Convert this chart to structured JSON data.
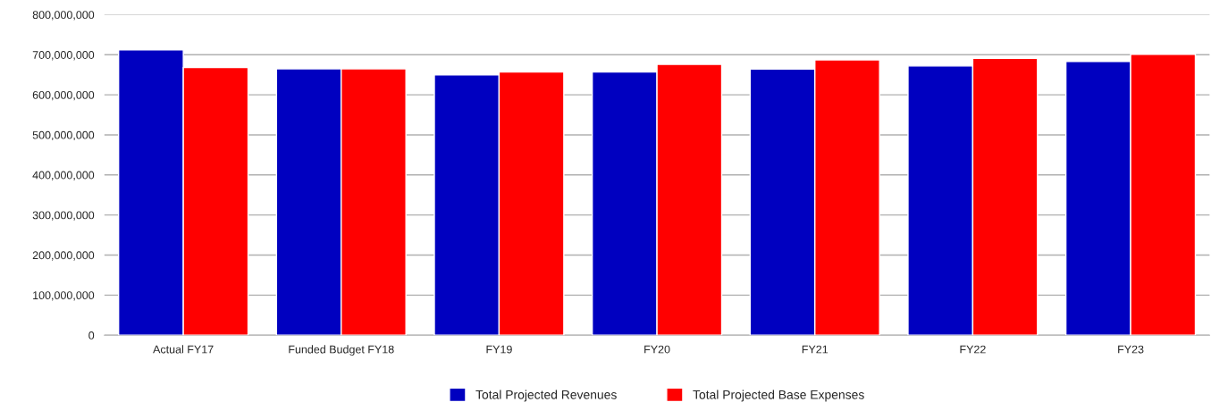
{
  "chart_data": {
    "type": "bar",
    "categories": [
      "Actual FY17",
      "Funded Budget FY18",
      "FY19",
      "FY20",
      "FY21",
      "FY22",
      "FY23"
    ],
    "series": [
      {
        "name": "Total Projected Revenues",
        "color": "#0000c0",
        "values": [
          712000000,
          665000000,
          650000000,
          657000000,
          664000000,
          672000000,
          683000000
        ]
      },
      {
        "name": "Total Projected Base Expenses",
        "color": "#ff0000",
        "values": [
          668000000,
          665000000,
          657000000,
          676000000,
          687000000,
          691000000,
          701000000
        ]
      }
    ],
    "ylim": [
      0,
      800000000
    ],
    "yticks": [
      {
        "value": 0,
        "label": "0"
      },
      {
        "value": 100000000,
        "label": "100,000,000"
      },
      {
        "value": 200000000,
        "label": "200,000,000"
      },
      {
        "value": 300000000,
        "label": "300,000,000"
      },
      {
        "value": 400000000,
        "label": "400,000,000"
      },
      {
        "value": 500000000,
        "label": "500,000,000"
      },
      {
        "value": 600000000,
        "label": "600,000,000"
      },
      {
        "value": 700000000,
        "label": "700,000,000"
      },
      {
        "value": 800000000,
        "label": "800,000,000"
      }
    ],
    "grid": "y",
    "legend": "bottom"
  }
}
